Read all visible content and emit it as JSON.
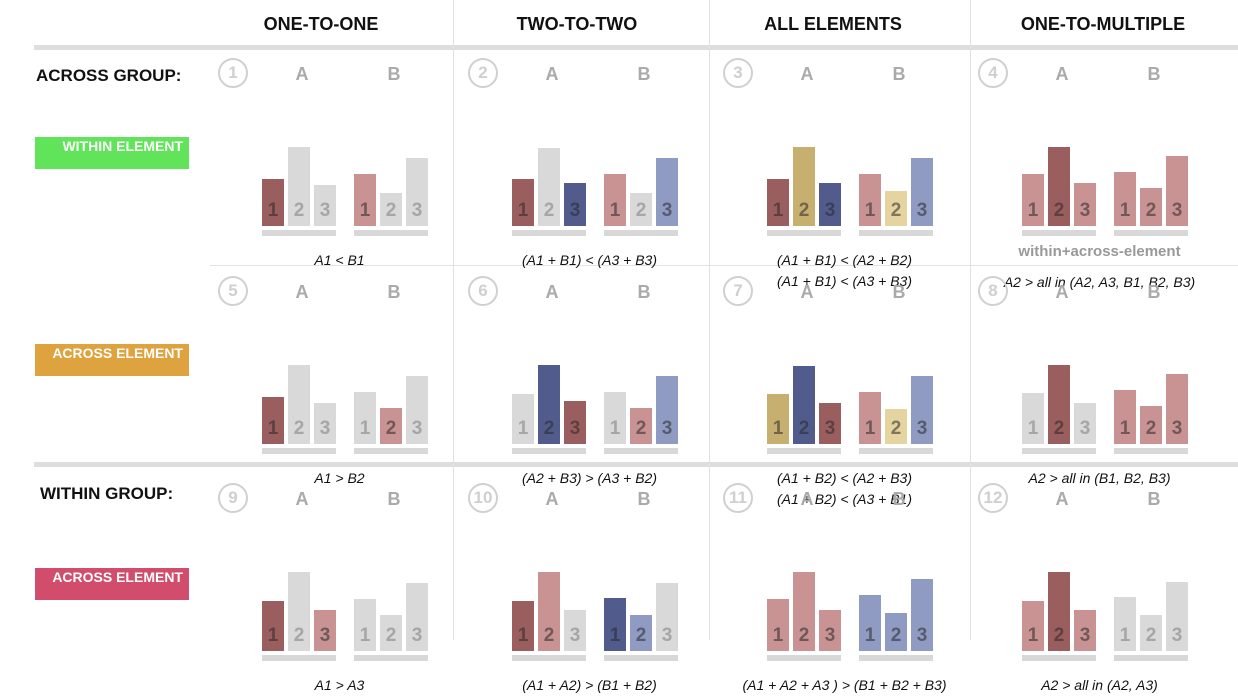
{
  "columns": [
    "ONE-TO-ONE",
    "TWO-TO-TWO",
    "ALL ELEMENTS",
    "ONE-TO-MULTIPLE"
  ],
  "row_labels": {
    "across_group": "ACROSS GROUP:",
    "within_group": "WITHIN GROUP:"
  },
  "badges": [
    {
      "label": "WITHIN ELEMENT",
      "color": "#61e35a"
    },
    {
      "label": "ACROSS ELEMENT",
      "color": "#dea23e"
    },
    {
      "label": "ACROSS ELEMENT",
      "color": "#d24d6c"
    }
  ],
  "group_labels": [
    "A",
    "B"
  ],
  "bar_numbers": [
    "1",
    "2",
    "3"
  ],
  "colors": {
    "gray": "#d9d9d9",
    "dark_red": "#9b5e5e",
    "pink": "#c99393",
    "dark_blue": "#515c8c",
    "light_blue": "#8f9bc2",
    "gold": "#c7b06f",
    "light_gold": "#e5d3a0"
  },
  "cells": [
    {
      "number": "1",
      "heights": [
        [
          0.52,
          0.88,
          0.45
        ],
        [
          0.58,
          0.37,
          0.76
        ]
      ],
      "colors": [
        [
          "dark_red",
          "gray",
          "gray"
        ],
        [
          "pink",
          "gray",
          "gray"
        ]
      ],
      "formula": [
        "A1 < B1"
      ]
    },
    {
      "number": "2",
      "heights": [
        [
          0.52,
          0.87,
          0.48
        ],
        [
          0.58,
          0.37,
          0.76
        ]
      ],
      "colors": [
        [
          "dark_red",
          "gray",
          "dark_blue"
        ],
        [
          "pink",
          "gray",
          "light_blue"
        ]
      ],
      "formula": [
        "(A1 + B1) < (A3 + B3)"
      ]
    },
    {
      "number": "3",
      "heights": [
        [
          0.52,
          0.88,
          0.48
        ],
        [
          0.58,
          0.39,
          0.76
        ]
      ],
      "colors": [
        [
          "dark_red",
          "gold",
          "dark_blue"
        ],
        [
          "pink",
          "light_gold",
          "light_blue"
        ]
      ],
      "formula": [
        "(A1 + B1) < (A2  + B2)",
        "(A1 + B1) < (A3 + B3)"
      ]
    },
    {
      "number": "4",
      "heights": [
        [
          0.58,
          0.88,
          0.48
        ],
        [
          0.6,
          0.42,
          0.78
        ]
      ],
      "colors": [
        [
          "pink",
          "dark_red",
          "pink"
        ],
        [
          "pink",
          "pink",
          "pink"
        ]
      ],
      "extra": "within+across-element",
      "formula": [
        "A2 > all in (A2, A3, B1, B2, B3)"
      ]
    },
    {
      "number": "5",
      "heights": [
        [
          0.52,
          0.88,
          0.45
        ],
        [
          0.58,
          0.4,
          0.76
        ]
      ],
      "colors": [
        [
          "dark_red",
          "gray",
          "gray"
        ],
        [
          "gray",
          "pink",
          "gray"
        ]
      ],
      "formula": [
        "A1 > B2"
      ]
    },
    {
      "number": "6",
      "heights": [
        [
          0.56,
          0.88,
          0.48
        ],
        [
          0.58,
          0.4,
          0.76
        ]
      ],
      "colors": [
        [
          "gray",
          "dark_blue",
          "dark_red"
        ],
        [
          "gray",
          "pink",
          "light_blue"
        ]
      ],
      "formula": [
        "(A2 + B3) > (A3 + B2)"
      ]
    },
    {
      "number": "7",
      "heights": [
        [
          0.55,
          0.87,
          0.46
        ],
        [
          0.58,
          0.39,
          0.76
        ]
      ],
      "colors": [
        [
          "gold",
          "dark_blue",
          "dark_red"
        ],
        [
          "pink",
          "light_gold",
          "light_blue"
        ]
      ],
      "formula": [
        "(A1 + B2) < (A2  + B3)",
        "(A1 + B2) < (A3 + B1)"
      ]
    },
    {
      "number": "8",
      "heights": [
        [
          0.57,
          0.88,
          0.46
        ],
        [
          0.6,
          0.42,
          0.78
        ]
      ],
      "colors": [
        [
          "gray",
          "dark_red",
          "gray"
        ],
        [
          "pink",
          "pink",
          "pink"
        ]
      ],
      "formula": [
        "A2 > all in (B1, B2, B3)"
      ]
    },
    {
      "number": "9",
      "heights": [
        [
          0.56,
          0.88,
          0.46
        ],
        [
          0.58,
          0.4,
          0.76
        ]
      ],
      "colors": [
        [
          "dark_red",
          "gray",
          "pink"
        ],
        [
          "gray",
          "gray",
          "gray"
        ]
      ],
      "formula": [
        "A1 > A3"
      ]
    },
    {
      "number": "10",
      "heights": [
        [
          0.56,
          0.88,
          0.46
        ],
        [
          0.59,
          0.4,
          0.76
        ]
      ],
      "colors": [
        [
          "dark_red",
          "pink",
          "gray"
        ],
        [
          "dark_blue",
          "light_blue",
          "gray"
        ]
      ],
      "formula": [
        "(A1 + A2) > (B1 + B2)"
      ]
    },
    {
      "number": "11",
      "heights": [
        [
          0.58,
          0.88,
          0.46
        ],
        [
          0.62,
          0.42,
          0.8
        ]
      ],
      "colors": [
        [
          "pink",
          "pink",
          "pink"
        ],
        [
          "light_blue",
          "light_blue",
          "light_blue"
        ]
      ],
      "formula": [
        "(A1 + A2 + A3 ) > (B1 + B2 + B3)"
      ]
    },
    {
      "number": "12",
      "heights": [
        [
          0.56,
          0.88,
          0.46
        ],
        [
          0.6,
          0.4,
          0.77
        ]
      ],
      "colors": [
        [
          "pink",
          "dark_red",
          "pink"
        ],
        [
          "gray",
          "gray",
          "gray"
        ]
      ],
      "formula": [
        "A2 > all in (A2, A3)"
      ]
    }
  ]
}
